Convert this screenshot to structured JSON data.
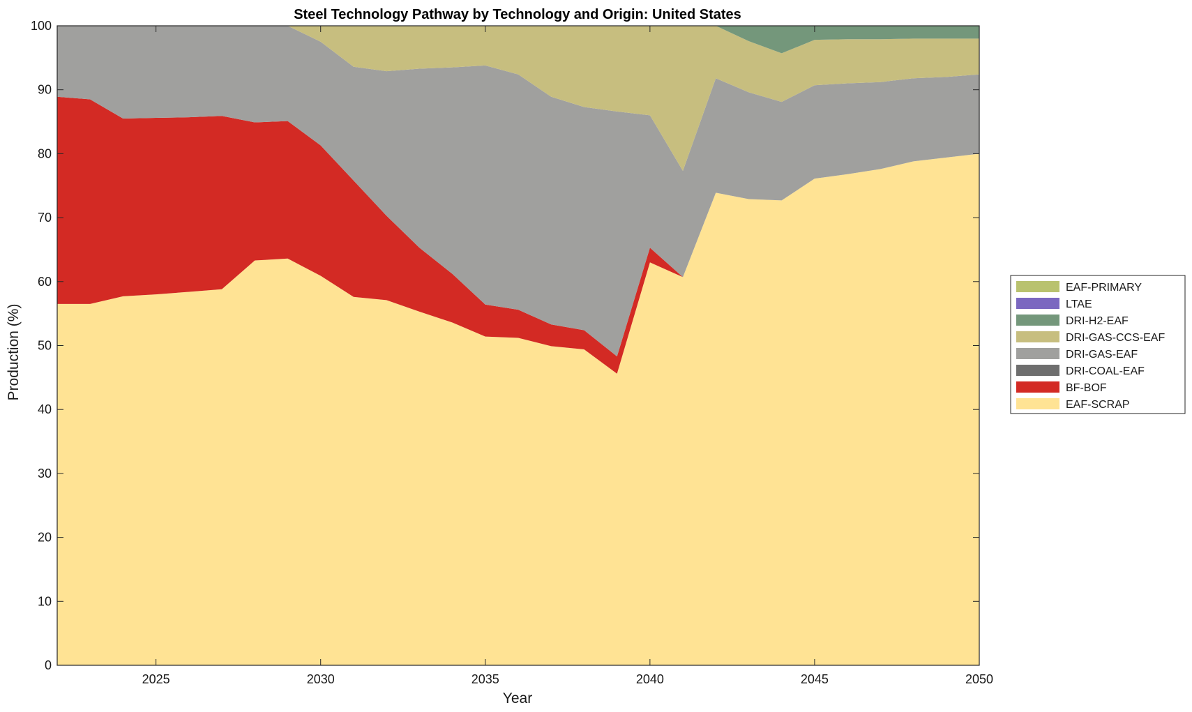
{
  "chart_data": {
    "type": "area",
    "title": "Steel Technology Pathway by Technology and Origin: United States",
    "xlabel": "Year",
    "ylabel": "Production (%)",
    "xlim": [
      2022,
      2050
    ],
    "ylim": [
      0,
      100
    ],
    "xticks": [
      2025,
      2030,
      2035,
      2040,
      2045,
      2050
    ],
    "yticks": [
      0,
      10,
      20,
      30,
      40,
      50,
      60,
      70,
      80,
      90,
      100
    ],
    "grid": false,
    "legend_position": "right",
    "stacked": true,
    "x": [
      2022,
      2023,
      2024,
      2025,
      2026,
      2027,
      2028,
      2029,
      2030,
      2031,
      2032,
      2033,
      2034,
      2035,
      2036,
      2037,
      2038,
      2039,
      2040,
      2041,
      2042,
      2043,
      2044,
      2045,
      2046,
      2047,
      2048,
      2049,
      2050
    ],
    "series": [
      {
        "name": "EAF-SCRAP",
        "color": "#FFE394",
        "values": [
          56.5,
          56.5,
          57.7,
          58.0,
          58.4,
          58.8,
          63.3,
          63.6,
          60.9,
          57.6,
          57.1,
          55.3,
          53.6,
          51.4,
          51.2,
          49.9,
          49.4,
          45.6,
          63.0,
          60.7,
          73.9,
          72.9,
          72.7,
          76.1,
          76.8,
          77.6,
          78.8,
          79.4,
          80.0
        ]
      },
      {
        "name": "BF-BOF",
        "color": "#D32A24",
        "values": [
          32.4,
          32.0,
          27.8,
          27.6,
          27.3,
          27.1,
          21.6,
          21.5,
          20.4,
          18.2,
          13.2,
          10.0,
          7.6,
          5.0,
          4.4,
          3.4,
          3.0,
          2.7,
          2.3,
          0.0,
          0,
          0,
          0,
          0,
          0,
          0,
          0,
          0,
          0
        ]
      },
      {
        "name": "DRI-COAL-EAF",
        "color": "#6E6E6E",
        "values": [
          0,
          0,
          0,
          0,
          0,
          0,
          0,
          0,
          0,
          0,
          0,
          0,
          0,
          0,
          0,
          0,
          0,
          0,
          0,
          0,
          0,
          0,
          0,
          0,
          0,
          0,
          0,
          0,
          0
        ]
      },
      {
        "name": "DRI-GAS-EAF",
        "color": "#A0A09E",
        "values": [
          11.1,
          11.5,
          14.5,
          14.4,
          14.3,
          14.1,
          15.1,
          14.9,
          16.2,
          17.8,
          22.6,
          28.0,
          32.3,
          37.4,
          36.8,
          35.6,
          34.9,
          38.3,
          20.7,
          16.6,
          17.9,
          16.7,
          15.4,
          14.6,
          14.2,
          13.6,
          13.0,
          12.6,
          12.4
        ]
      },
      {
        "name": "DRI-GAS-CCS-EAF",
        "color": "#C7BE7F",
        "values": [
          0,
          0,
          0,
          0,
          0,
          0,
          0,
          0,
          2.5,
          6.4,
          7.1,
          6.7,
          6.5,
          6.2,
          7.6,
          11.1,
          12.7,
          13.4,
          14.0,
          22.7,
          8.2,
          8.0,
          7.6,
          7.1,
          6.9,
          6.7,
          6.2,
          6.0,
          5.6
        ]
      },
      {
        "name": "DRI-H2-EAF",
        "color": "#74977B",
        "values": [
          0,
          0,
          0,
          0,
          0,
          0,
          0,
          0,
          0,
          0,
          0,
          0,
          0,
          0,
          0,
          0,
          0,
          0,
          0,
          0,
          0,
          2.4,
          4.3,
          2.2,
          2.1,
          2.1,
          2.0,
          2.0,
          2.0
        ]
      },
      {
        "name": "LTAE",
        "color": "#7B68C0",
        "values": [
          0,
          0,
          0,
          0,
          0,
          0,
          0,
          0,
          0,
          0,
          0,
          0,
          0,
          0,
          0,
          0,
          0,
          0,
          0,
          0,
          0,
          0,
          0,
          0,
          0,
          0,
          0,
          0,
          0
        ]
      },
      {
        "name": "EAF-PRIMARY",
        "color": "#B9C26E",
        "values": [
          0,
          0,
          0,
          0,
          0,
          0,
          0,
          0,
          0,
          0,
          0,
          0,
          0,
          0,
          0,
          0,
          0,
          0,
          0,
          0,
          0,
          0,
          0,
          0,
          0,
          0,
          0,
          0,
          0
        ]
      }
    ],
    "legend_order": [
      "EAF-PRIMARY",
      "LTAE",
      "DRI-H2-EAF",
      "DRI-GAS-CCS-EAF",
      "DRI-GAS-EAF",
      "DRI-COAL-EAF",
      "BF-BOF",
      "EAF-SCRAP"
    ]
  }
}
